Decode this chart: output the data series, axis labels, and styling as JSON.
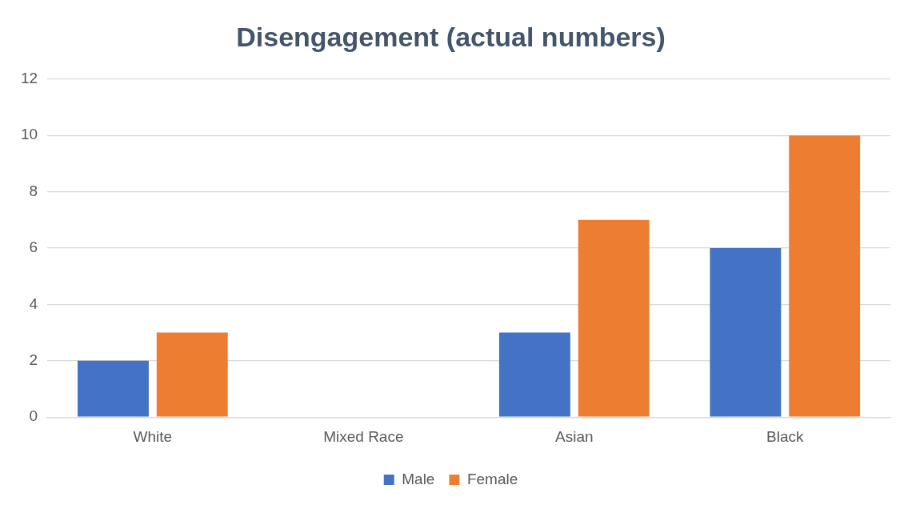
{
  "chart_data": {
    "type": "bar",
    "title": "Disengagement (actual numbers)",
    "categories": [
      "White",
      "Mixed Race",
      "Asian",
      "Black"
    ],
    "series": [
      {
        "name": "Male",
        "color": "#4472c4",
        "values": [
          2,
          0,
          3,
          6
        ]
      },
      {
        "name": "Female",
        "color": "#ed7d31",
        "values": [
          3,
          0,
          7,
          10
        ]
      }
    ],
    "ylim": [
      0,
      12
    ],
    "yticks": [
      0,
      2,
      4,
      6,
      8,
      10,
      12
    ],
    "grid": "y",
    "legend": "bottom"
  }
}
